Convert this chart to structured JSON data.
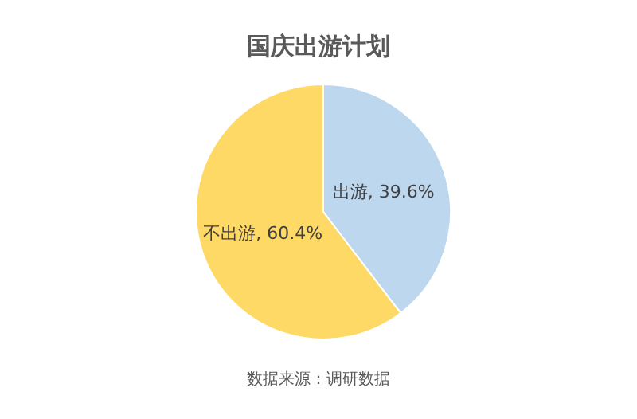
{
  "chart_data": {
    "type": "pie",
    "title": "国庆出游计划",
    "categories": [
      "出游",
      "不出游"
    ],
    "values": [
      39.6,
      60.4
    ],
    "value_labels": [
      "39.6%",
      "60.4%"
    ],
    "colors": [
      "#bdd7ee",
      "#ffd966"
    ],
    "annotations": [
      "数据来源：调研数据"
    ]
  }
}
